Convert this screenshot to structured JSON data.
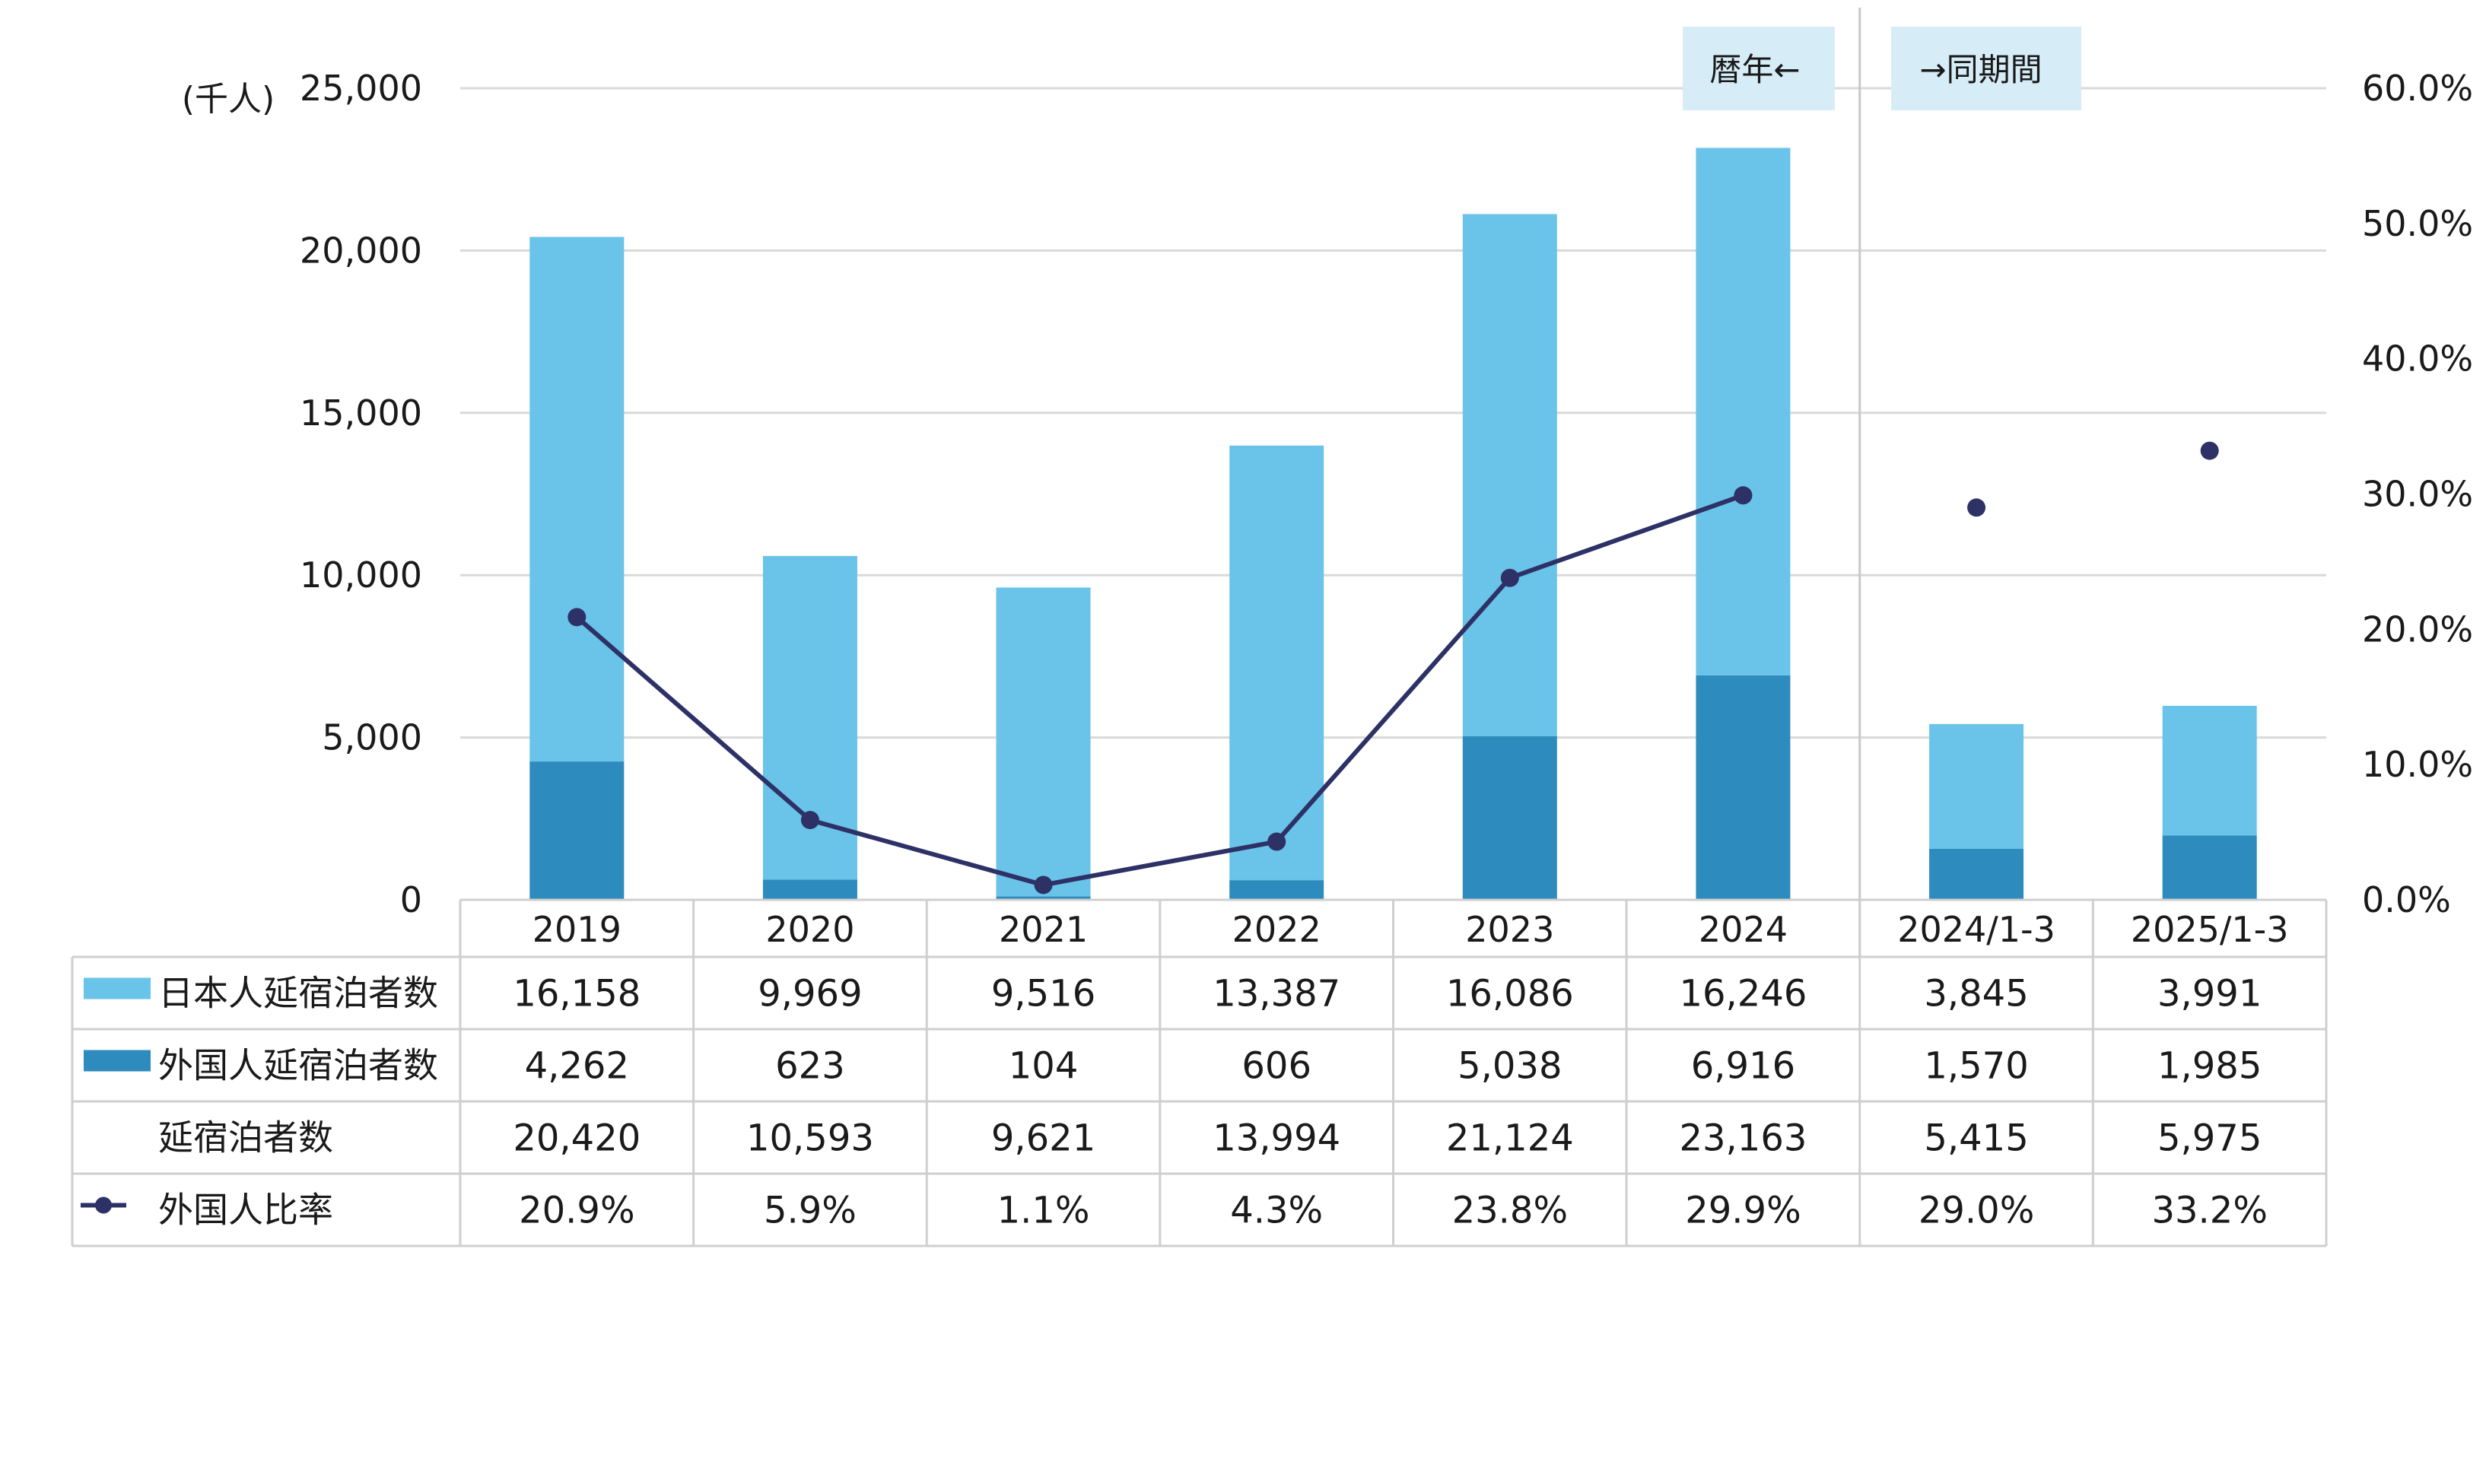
{
  "chart_data": {
    "type": "bar",
    "stacked": true,
    "unit_label": "(千人)",
    "categories": [
      "2019",
      "2020",
      "2021",
      "2022",
      "2023",
      "2024",
      "2024/1-3",
      "2025/1-3"
    ],
    "series": [
      {
        "name": "日本人延宿泊者数",
        "kind": "bar",
        "axis": "left",
        "color": "#6ac3e8",
        "values": [
          16158,
          9969,
          9516,
          13387,
          16086,
          16246,
          3845,
          3991
        ],
        "labels": [
          "16,158",
          "9,969",
          "9,516",
          "13,387",
          "16,086",
          "16,246",
          "3,845",
          "3,991"
        ]
      },
      {
        "name": "外国人延宿泊者数",
        "kind": "bar",
        "axis": "left",
        "color": "#2e8bbd",
        "values": [
          4262,
          623,
          104,
          606,
          5038,
          6916,
          1570,
          1985
        ],
        "labels": [
          "4,262",
          "623",
          "104",
          "606",
          "5,038",
          "6,916",
          "1,570",
          "1,985"
        ]
      },
      {
        "name": "延宿泊者数",
        "kind": "total",
        "values": [
          20420,
          10593,
          9621,
          13994,
          21124,
          23163,
          5415,
          5975
        ],
        "labels": [
          "20,420",
          "10,593",
          "9,621",
          "13,994",
          "21,124",
          "23,163",
          "5,415",
          "5,975"
        ]
      },
      {
        "name": "外国人比率",
        "kind": "line",
        "axis": "right",
        "color": "#2d3166",
        "values": [
          20.9,
          5.9,
          1.1,
          4.3,
          23.8,
          29.9,
          29.0,
          33.2
        ],
        "labels": [
          "20.9%",
          "5.9%",
          "1.1%",
          "4.3%",
          "23.8%",
          "29.9%",
          "29.0%",
          "33.2%"
        ],
        "connected_through": 5
      }
    ],
    "y_left": {
      "min": 0,
      "max": 25000,
      "ticks": [
        "0",
        "5,000",
        "10,000",
        "15,000",
        "20,000",
        "25,000"
      ]
    },
    "y_right": {
      "min": 0,
      "max": 60,
      "ticks": [
        "0.0%",
        "10.0%",
        "20.0%",
        "30.0%",
        "40.0%",
        "50.0%",
        "60.0%"
      ]
    },
    "annotations": {
      "left_period": "暦年←",
      "right_period": "→同期間"
    },
    "grid": true,
    "legend_placement": "data-table"
  }
}
